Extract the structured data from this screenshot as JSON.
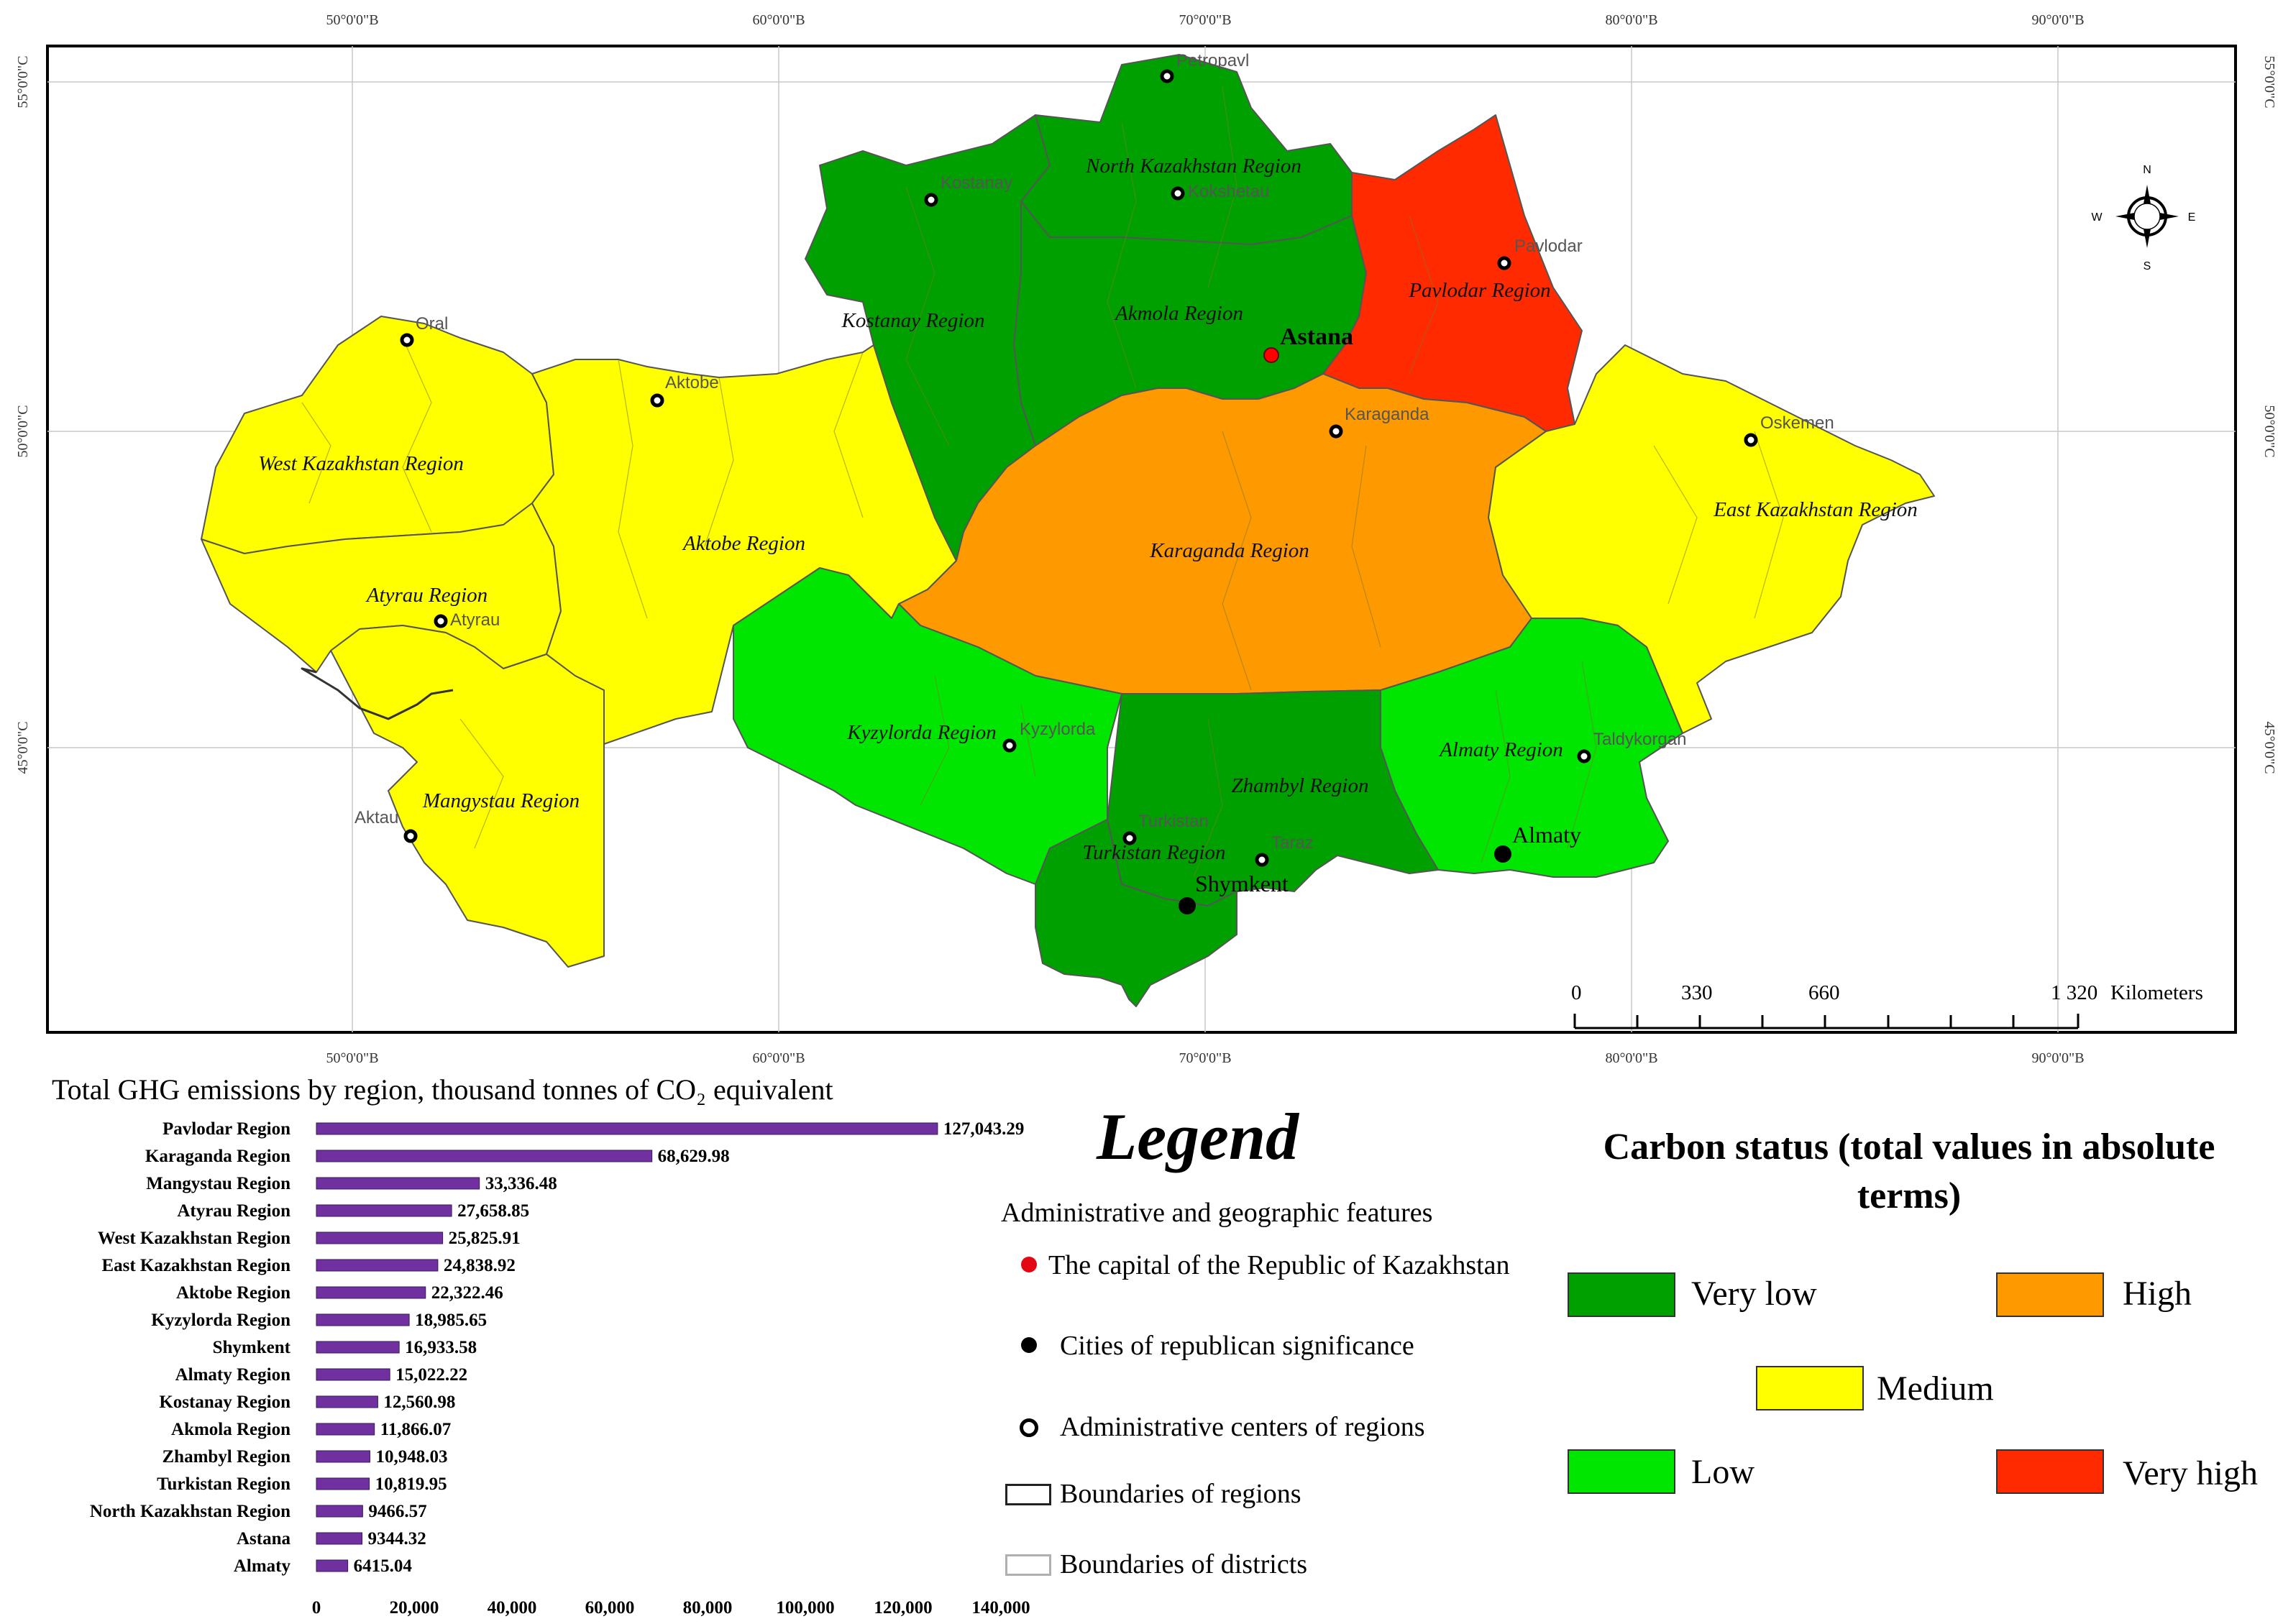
{
  "map": {
    "grid_top": [
      "50°0'0\"В",
      "60°0'0\"В",
      "70°0'0\"В",
      "80°0'0\"В",
      "90°0'0\"В"
    ],
    "grid_bottom": [
      "50°0'0\"В",
      "60°0'0\"В",
      "70°0'0\"В",
      "80°0'0\"В",
      "90°0'0\"В"
    ],
    "grid_left": [
      "55°0'0\"С",
      "50°0'0\"С",
      "45°0'0\"С"
    ],
    "grid_right": [
      "55°0'0\"С",
      "50°0'0\"С",
      "45°0'0\"С"
    ],
    "regions": [
      {
        "name": "Pavlodar Region",
        "status": "Very high",
        "color": "#ff2a00"
      },
      {
        "name": "Karaganda Region",
        "status": "High",
        "color": "#ff9900"
      },
      {
        "name": "West Kazakhstan Region",
        "status": "Medium",
        "color": "#ffff00"
      },
      {
        "name": "Aktobe Region",
        "status": "Medium",
        "color": "#ffff00"
      },
      {
        "name": "Atyrau Region",
        "status": "Medium",
        "color": "#ffff00"
      },
      {
        "name": "Mangystau Region",
        "status": "Medium",
        "color": "#ffff00"
      },
      {
        "name": "East Kazakhstan Region",
        "status": "Medium",
        "color": "#ffff00"
      },
      {
        "name": "Kyzylorda Region",
        "status": "Low",
        "color": "#00e600"
      },
      {
        "name": "Almaty Region",
        "status": "Low",
        "color": "#00e600"
      },
      {
        "name": "Kostanay Region",
        "status": "Very low",
        "color": "#00a000"
      },
      {
        "name": "North Kazakhstan Region",
        "status": "Very low",
        "color": "#00a000"
      },
      {
        "name": "Akmola Region",
        "status": "Very low",
        "color": "#00a000"
      },
      {
        "name": "Zhambyl Region",
        "status": "Very low",
        "color": "#00a000"
      },
      {
        "name": "Turkistan Region",
        "status": "Very low",
        "color": "#00a000"
      }
    ],
    "cities": {
      "petropavl": "Petropavl",
      "kostanay": "Kostanay",
      "kokshetau": "Kokshetau",
      "pavlodar": "Pavlodar",
      "astana": "Astana",
      "oral": "Oral",
      "aktobe": "Aktobe",
      "karaganda": "Karaganda",
      "oskemen": "Oskemen",
      "atyrau": "Atyrau",
      "kyzylorda": "Kyzylorda",
      "taldykorgan": "Taldykorgan",
      "aktau": "Aktau",
      "turkistan": "Turkistan",
      "taraz": "Taraz",
      "almaty": "Almaty",
      "shymkent": "Shymkent"
    },
    "compass": {
      "n": "N",
      "s": "S",
      "e": "E",
      "w": "W"
    },
    "scale": {
      "labels": [
        "0",
        "330",
        "660",
        "1 320"
      ],
      "unit": "Kilometers"
    }
  },
  "chart_data": {
    "type": "bar",
    "orientation": "horizontal",
    "title": "Total GHG emissions by region, thousand tonnes of CO₂ equivalent",
    "categories": [
      "Pavlodar Region",
      "Karaganda Region",
      "Mangystau Region",
      "Atyrau Region",
      "West Kazakhstan Region",
      "East Kazakhstan Region",
      "Aktobe Region",
      "Kyzylorda Region",
      "Shymkent",
      "Almaty Region",
      "Kostanay Region",
      "Akmola Region",
      "Zhambyl Region",
      "Turkistan Region",
      "North Kazakhstan Region",
      "Astana",
      "Almaty"
    ],
    "values": [
      127043.29,
      68629.98,
      33336.48,
      27658.85,
      25825.91,
      24838.92,
      22322.46,
      18985.65,
      16933.58,
      15022.22,
      12560.98,
      11866.07,
      10948.03,
      10819.95,
      9466.57,
      9344.32,
      6415.04
    ],
    "value_labels": [
      "127,043.29",
      "68,629.98",
      "33,336.48",
      "27,658.85",
      "25,825.91",
      "24,838.92",
      "22,322.46",
      "18,985.65",
      "16,933.58",
      "15,022.22",
      "12,560.98",
      "11,866.07",
      "10,948.03",
      "10,819.95",
      "9466.57",
      "9344.32",
      "6415.04"
    ],
    "xticks": [
      "0",
      "20,000",
      "40,000",
      "60,000",
      "80,000",
      "100,000",
      "120,000",
      "140,000"
    ],
    "xlim": [
      0,
      140000
    ],
    "bar_color": "#7030a0",
    "grid": false
  },
  "legend": {
    "title": "Legend",
    "subtitle": "Administrative and geographic features",
    "capital": "The capital of the Republic of Kazakhstan",
    "cities_rep": "Cities of republican significance",
    "admin_centers": "Administrative centers of regions",
    "region_boundaries": "Boundaries of regions",
    "district_boundaries": "Boundaries of districts"
  },
  "carbon_status": {
    "title": "Carbon status (total values in absolute terms)",
    "very_low": "Very low",
    "high": "High",
    "medium": "Medium",
    "low": "Low",
    "very_high": "Very high",
    "colors": {
      "very_low": "#00a000",
      "high": "#ff9900",
      "medium": "#ffff00",
      "low": "#00e600",
      "very_high": "#ff2a00"
    }
  }
}
